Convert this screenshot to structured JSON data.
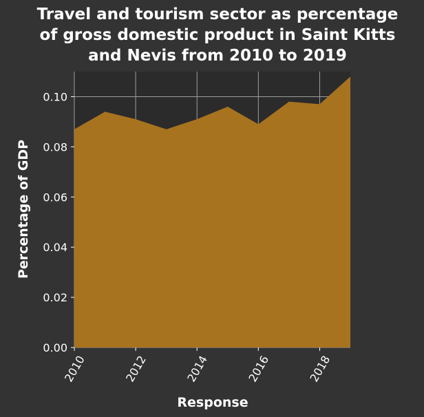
{
  "chart_data": {
    "type": "area",
    "title": [
      "Travel and tourism sector as percentage",
      "of gross domestic product in Saint Kitts",
      "and Nevis from 2010 to 2019"
    ],
    "xlabel": "Response",
    "ylabel": "Percentage of GDP",
    "x": [
      2010,
      2011,
      2012,
      2013,
      2014,
      2015,
      2016,
      2017,
      2018,
      2019
    ],
    "values": [
      0.087,
      0.094,
      0.091,
      0.087,
      0.091,
      0.096,
      0.089,
      0.098,
      0.097,
      0.108
    ],
    "xticks": [
      2010,
      2012,
      2014,
      2016,
      2018
    ],
    "xtick_labels": [
      "2010",
      "2012",
      "2014",
      "2016",
      "2018"
    ],
    "yticks": [
      0,
      0.02,
      0.04,
      0.06,
      0.08,
      0.1
    ],
    "ytick_labels": [
      "0.00",
      "0.02",
      "0.04",
      "0.06",
      "0.08",
      "0.10"
    ],
    "xlim": [
      2010,
      2019
    ],
    "ylim": [
      0,
      0.11
    ],
    "grid": true,
    "colors": {
      "background": "#333333",
      "plot_area": "#2b2b2b",
      "fill": "#a8731f",
      "grid": "#9e9e9e",
      "text": "#ffffff"
    }
  }
}
